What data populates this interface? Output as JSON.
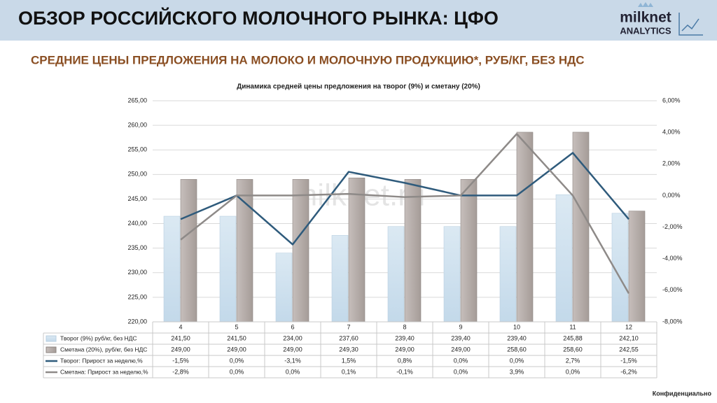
{
  "header": {
    "title": "ОБЗОР РОССИЙСКОГО МОЛОЧНОГО РЫНКА: ЦФО",
    "logo_top": "milknet",
    "logo_bottom": "ANALYTICS"
  },
  "subtitle": "СРЕДНИЕ ЦЕНЫ ПРЕДЛОЖЕНИЯ НА МОЛОКО И МОЛОЧНУЮ ПРОДУКЦИЮ*, РУБ/КГ, БЕЗ НДС",
  "watermark": "milknet.ru",
  "footer": "Конфиденциально",
  "chart_data": {
    "type": "bar",
    "title": "Динамика средней цены предложения на творог (9%) и сметану (20%)",
    "categories": [
      "4",
      "5",
      "6",
      "7",
      "8",
      "9",
      "10",
      "11",
      "12"
    ],
    "ylim": [
      220,
      265
    ],
    "yticks": [
      {
        "value": 220,
        "label": "220,00"
      },
      {
        "value": 225,
        "label": "225,00"
      },
      {
        "value": 230,
        "label": "230,00"
      },
      {
        "value": 235,
        "label": "235,00"
      },
      {
        "value": 240,
        "label": "240,00"
      },
      {
        "value": 245,
        "label": "245,00"
      },
      {
        "value": 250,
        "label": "250,00"
      },
      {
        "value": 255,
        "label": "255,00"
      },
      {
        "value": 260,
        "label": "260,00"
      },
      {
        "value": 265,
        "label": "265,00"
      }
    ],
    "y2lim": [
      -8,
      6
    ],
    "y2ticks": [
      {
        "value": -8,
        "label": "-8,00%"
      },
      {
        "value": -6,
        "label": "-6,00%"
      },
      {
        "value": -4,
        "label": "-4,00%"
      },
      {
        "value": -2,
        "label": "-2,00%"
      },
      {
        "value": 0,
        "label": "0,00%"
      },
      {
        "value": 2,
        "label": "2,00%"
      },
      {
        "value": 4,
        "label": "4,00%"
      },
      {
        "value": 6,
        "label": "6,00%"
      }
    ],
    "grid": true,
    "series": [
      {
        "name": "Творог (9%) руб/кг, без НДС",
        "type": "bar",
        "color": "#cfe1ee",
        "values": [
          241.5,
          241.5,
          234,
          237.6,
          239.4,
          239.4,
          239.4,
          245.88,
          242.1
        ],
        "value_labels": [
          "241,50",
          "241,50",
          "234,00",
          "237,60",
          "239,40",
          "239,40",
          "239,40",
          "245,88",
          "242,10"
        ]
      },
      {
        "name": "Сметана (20%), руб/кг, без НДС",
        "type": "bar",
        "color": "#b5aca8",
        "values": [
          249,
          249,
          249,
          249.3,
          249,
          249,
          258.6,
          258.6,
          242.55
        ],
        "value_labels": [
          "249,00",
          "249,00",
          "249,00",
          "249,30",
          "249,00",
          "249,00",
          "258,60",
          "258,60",
          "242,55"
        ]
      },
      {
        "name": "Творог: Прирост за неделю,%",
        "type": "line",
        "axis": "y2",
        "color": "#2f5b7c",
        "values": [
          -1.5,
          0,
          -3.1,
          1.5,
          0.8,
          0,
          0,
          2.7,
          -1.5
        ],
        "value_labels": [
          "-1,5%",
          "0,0%",
          "-3,1%",
          "1,5%",
          "0,8%",
          "0,0%",
          "0,0%",
          "2,7%",
          "-1,5%"
        ]
      },
      {
        "name": "Сметана: Прирост за неделю,%",
        "type": "line",
        "axis": "y2",
        "color": "#8e8a88",
        "values": [
          -2.8,
          0,
          0,
          0.1,
          -0.1,
          0,
          3.9,
          0,
          -6.2
        ],
        "value_labels": [
          "-2,8%",
          "0,0%",
          "0,0%",
          "0,1%",
          "-0,1%",
          "0,0%",
          "3,9%",
          "0,0%",
          "-6,2%"
        ]
      }
    ]
  }
}
